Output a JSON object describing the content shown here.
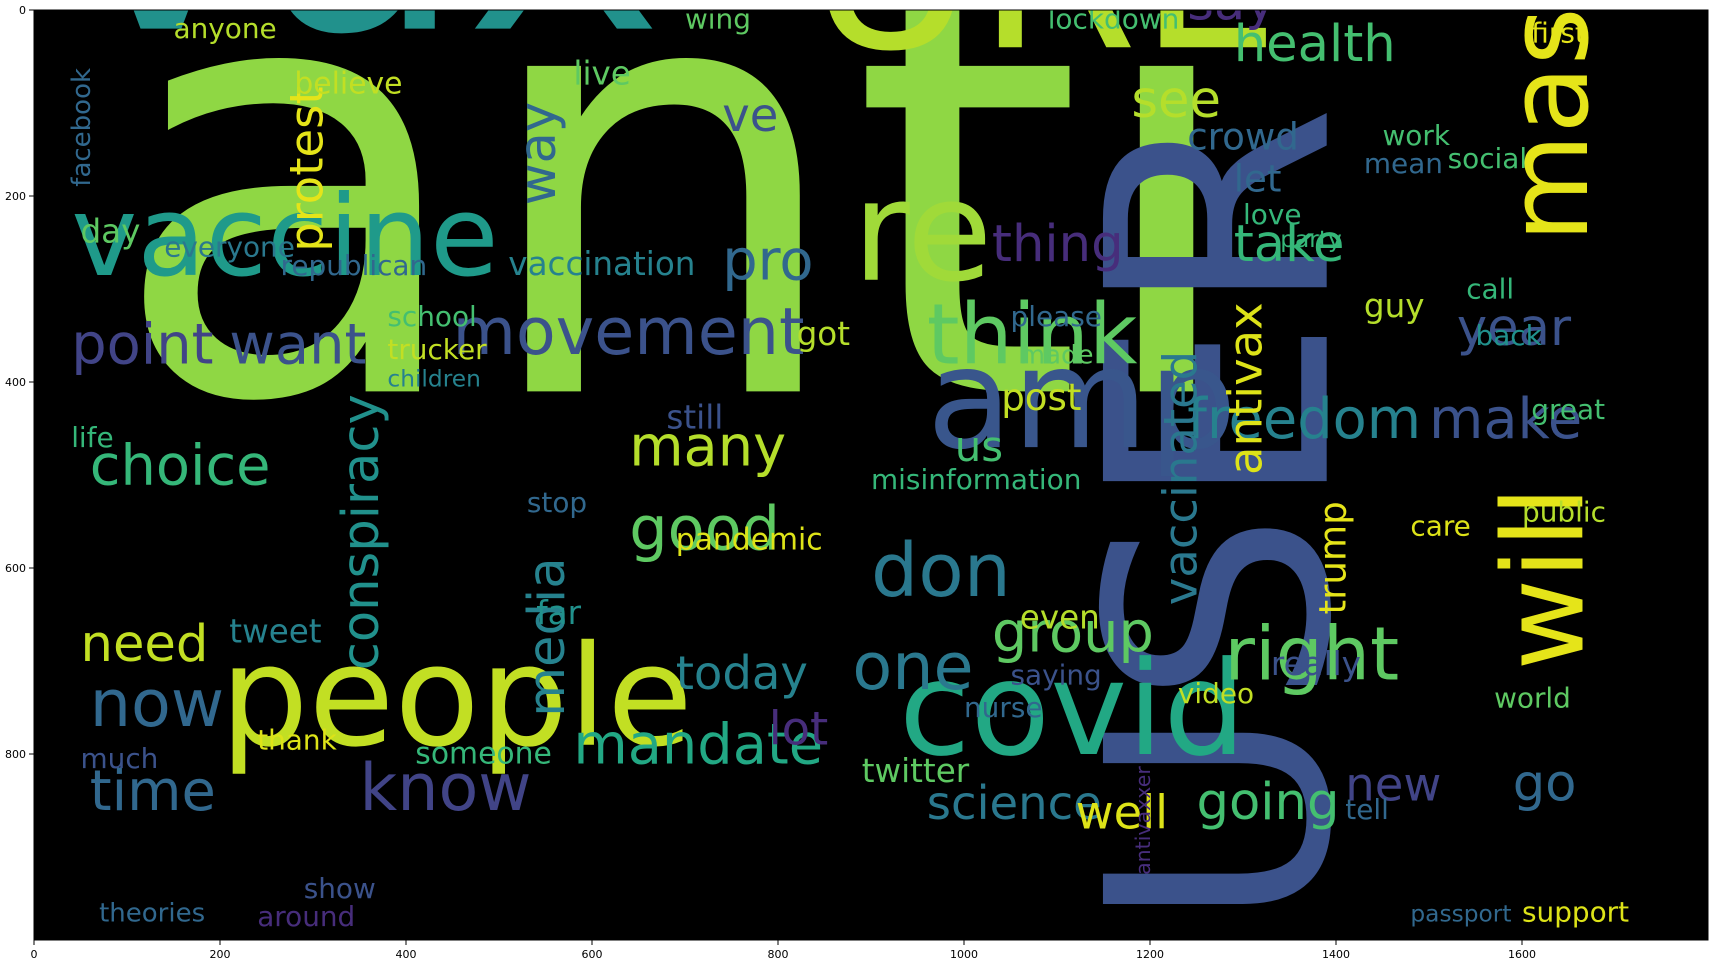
{
  "chart_data": {
    "type": "wordcloud",
    "xlim": [
      0,
      1800
    ],
    "ylim": [
      0,
      1000
    ],
    "y_inverted": true,
    "x_ticks": [
      0,
      200,
      400,
      600,
      800,
      1000,
      1200,
      1400,
      1600
    ],
    "y_ticks": [
      0,
      200,
      400,
      600,
      800
    ],
    "background": "#000000",
    "colormap": "viridis",
    "words": [
      {
        "text": "anti",
        "x": 80,
        "y": 410,
        "size": 640,
        "color": "#8fd744"
      },
      {
        "text": "vax",
        "x": 30,
        "y": 20,
        "size": 360,
        "color": "#21918c"
      },
      {
        "text": "USER",
        "x": 1390,
        "y": 990,
        "size": 330,
        "color": "#3b528b",
        "rotate": true
      },
      {
        "text": "URL",
        "x": 830,
        "y": 40,
        "size": 250,
        "color": "#b5de2b"
      },
      {
        "text": "people",
        "x": 200,
        "y": 790,
        "size": 150,
        "color": "#c2df23"
      },
      {
        "text": "vaccine",
        "x": 40,
        "y": 285,
        "size": 120,
        "color": "#1f9a8a"
      },
      {
        "text": "re",
        "x": 880,
        "y": 290,
        "size": 150,
        "color": "#a0da39"
      },
      {
        "text": "covid",
        "x": 930,
        "y": 800,
        "size": 140,
        "color": "#22a884"
      },
      {
        "text": "amp",
        "x": 960,
        "y": 470,
        "size": 150,
        "color": "#39568c"
      },
      {
        "text": "mask",
        "x": 1670,
        "y": 250,
        "size": 120,
        "color": "#e5e419",
        "rotate": true
      },
      {
        "text": "will",
        "x": 1665,
        "y": 710,
        "size": 120,
        "color": "#e5e419",
        "rotate": true
      },
      {
        "text": "think",
        "x": 960,
        "y": 380,
        "size": 90,
        "color": "#5ec962"
      },
      {
        "text": "don",
        "x": 900,
        "y": 630,
        "size": 80,
        "color": "#2a788e"
      },
      {
        "text": "movement",
        "x": 450,
        "y": 370,
        "size": 70,
        "color": "#3b528b"
      },
      {
        "text": "point",
        "x": 40,
        "y": 380,
        "size": 60,
        "color": "#414487"
      },
      {
        "text": "want",
        "x": 210,
        "y": 380,
        "size": 60,
        "color": "#3b528b"
      },
      {
        "text": "choice",
        "x": 60,
        "y": 510,
        "size": 60,
        "color": "#35b779"
      },
      {
        "text": "good",
        "x": 640,
        "y": 580,
        "size": 65,
        "color": "#5ec962"
      },
      {
        "text": "many",
        "x": 640,
        "y": 490,
        "size": 60,
        "color": "#b5de2b"
      },
      {
        "text": "mandate",
        "x": 580,
        "y": 810,
        "size": 60,
        "color": "#22a884"
      },
      {
        "text": "know",
        "x": 350,
        "y": 860,
        "size": 70,
        "color": "#414487"
      },
      {
        "text": "now",
        "x": 60,
        "y": 770,
        "size": 70,
        "color": "#31688e"
      },
      {
        "text": "time",
        "x": 60,
        "y": 860,
        "size": 60,
        "color": "#31688e"
      },
      {
        "text": "need",
        "x": 50,
        "y": 700,
        "size": 55,
        "color": "#c2df23"
      },
      {
        "text": "right",
        "x": 1280,
        "y": 720,
        "size": 80,
        "color": "#5ec962"
      },
      {
        "text": "freedom",
        "x": 1240,
        "y": 460,
        "size": 60,
        "color": "#26828e"
      },
      {
        "text": "make",
        "x": 1500,
        "y": 460,
        "size": 60,
        "color": "#3b528b"
      },
      {
        "text": "one",
        "x": 880,
        "y": 730,
        "size": 70,
        "color": "#2a788e"
      },
      {
        "text": "group",
        "x": 1030,
        "y": 690,
        "size": 60,
        "color": "#5ec962"
      },
      {
        "text": "science",
        "x": 960,
        "y": 870,
        "size": 50,
        "color": "#2a788e"
      },
      {
        "text": "well",
        "x": 1120,
        "y": 880,
        "size": 50,
        "color": "#dde318"
      },
      {
        "text": "going",
        "x": 1250,
        "y": 870,
        "size": 55,
        "color": "#44bf70"
      },
      {
        "text": "new",
        "x": 1410,
        "y": 850,
        "size": 50,
        "color": "#414487"
      },
      {
        "text": "go",
        "x": 1590,
        "y": 850,
        "size": 55,
        "color": "#31688e"
      },
      {
        "text": "year",
        "x": 1530,
        "y": 360,
        "size": 55,
        "color": "#3b528b"
      },
      {
        "text": "health",
        "x": 1290,
        "y": 55,
        "size": 55,
        "color": "#44bf70"
      },
      {
        "text": "say",
        "x": 1240,
        "y": 10,
        "size": 55,
        "color": "#472d7b"
      },
      {
        "text": "see",
        "x": 1180,
        "y": 115,
        "size": 55,
        "color": "#b5de2b"
      },
      {
        "text": "crowd",
        "x": 1240,
        "y": 150,
        "size": 40,
        "color": "#31688e"
      },
      {
        "text": "take",
        "x": 1290,
        "y": 270,
        "size": 55,
        "color": "#35b779"
      },
      {
        "text": "thing",
        "x": 1030,
        "y": 270,
        "size": 55,
        "color": "#472d7b"
      },
      {
        "text": "pro",
        "x": 740,
        "y": 290,
        "size": 60,
        "color": "#31688e"
      },
      {
        "text": "ve",
        "x": 740,
        "y": 130,
        "size": 50,
        "color": "#3b528b"
      },
      {
        "text": "way",
        "x": 560,
        "y": 210,
        "size": 55,
        "color": "#31688e",
        "rotate": true
      },
      {
        "text": "protest",
        "x": 310,
        "y": 260,
        "size": 50,
        "color": "#e5e419",
        "rotate": true
      },
      {
        "text": "conspiracy",
        "x": 370,
        "y": 710,
        "size": 55,
        "color": "#21918c",
        "rotate": true
      },
      {
        "text": "media",
        "x": 570,
        "y": 760,
        "size": 55,
        "color": "#26828e",
        "rotate": true
      },
      {
        "text": "vaccinated",
        "x": 1250,
        "y": 640,
        "size": 50,
        "color": "#2a788e",
        "rotate": true
      },
      {
        "text": "antivax",
        "x": 1320,
        "y": 500,
        "size": 50,
        "color": "#dde318",
        "rotate": true
      },
      {
        "text": "trump",
        "x": 1410,
        "y": 650,
        "size": 40,
        "color": "#e5e419",
        "rotate": true
      },
      {
        "text": "vaccination",
        "x": 510,
        "y": 285,
        "size": 35,
        "color": "#26828e"
      },
      {
        "text": "republican",
        "x": 265,
        "y": 285,
        "size": 30,
        "color": "#31688e"
      },
      {
        "text": "misinformation",
        "x": 900,
        "y": 515,
        "size": 30,
        "color": "#35b779"
      },
      {
        "text": "today",
        "x": 690,
        "y": 730,
        "size": 50,
        "color": "#26828e"
      },
      {
        "text": "pandemic",
        "x": 690,
        "y": 580,
        "size": 32,
        "color": "#dde318"
      },
      {
        "text": "lot",
        "x": 790,
        "y": 790,
        "size": 50,
        "color": "#472d7b"
      },
      {
        "text": "twitter",
        "x": 890,
        "y": 830,
        "size": 35,
        "color": "#5ec962"
      },
      {
        "text": "someone",
        "x": 410,
        "y": 810,
        "size": 32,
        "color": "#35b779"
      },
      {
        "text": "thank",
        "x": 240,
        "y": 795,
        "size": 30,
        "color": "#dde318"
      },
      {
        "text": "show",
        "x": 290,
        "y": 955,
        "size": 30,
        "color": "#3b528b"
      },
      {
        "text": "around",
        "x": 240,
        "y": 985,
        "size": 30,
        "color": "#472d7b"
      },
      {
        "text": "theories",
        "x": 70,
        "y": 980,
        "size": 28,
        "color": "#31688e"
      },
      {
        "text": "much",
        "x": 50,
        "y": 815,
        "size": 30,
        "color": "#3b528b"
      },
      {
        "text": "tweet",
        "x": 210,
        "y": 680,
        "size": 35,
        "color": "#26828e"
      },
      {
        "text": "life",
        "x": 40,
        "y": 470,
        "size": 30,
        "color": "#35b779"
      },
      {
        "text": "day",
        "x": 50,
        "y": 250,
        "size": 35,
        "color": "#5ec962"
      },
      {
        "text": "everyone",
        "x": 140,
        "y": 265,
        "size": 30,
        "color": "#2a788e"
      },
      {
        "text": "believe",
        "x": 280,
        "y": 90,
        "size": 32,
        "color": "#c2df23"
      },
      {
        "text": "live",
        "x": 580,
        "y": 80,
        "size": 35,
        "color": "#5ec962"
      },
      {
        "text": "anyone",
        "x": 150,
        "y": 30,
        "size": 30,
        "color": "#b5de2b"
      },
      {
        "text": "wing",
        "x": 700,
        "y": 20,
        "size": 30,
        "color": "#5ec962"
      },
      {
        "text": "lockdown",
        "x": 1090,
        "y": 20,
        "size": 30,
        "color": "#44bf70"
      },
      {
        "text": "first",
        "x": 1610,
        "y": 35,
        "size": 30,
        "color": "#e5e419"
      },
      {
        "text": "social",
        "x": 1520,
        "y": 170,
        "size": 30,
        "color": "#44bf70"
      },
      {
        "text": "call",
        "x": 1540,
        "y": 310,
        "size": 30,
        "color": "#35b779"
      },
      {
        "text": "back",
        "x": 1550,
        "y": 360,
        "size": 30,
        "color": "#21918c"
      },
      {
        "text": "great",
        "x": 1610,
        "y": 440,
        "size": 30,
        "color": "#44bf70"
      },
      {
        "text": "public",
        "x": 1600,
        "y": 550,
        "size": 30,
        "color": "#b5de2b"
      },
      {
        "text": "world",
        "x": 1570,
        "y": 750,
        "size": 30,
        "color": "#5ec962"
      },
      {
        "text": "support",
        "x": 1600,
        "y": 980,
        "size": 30,
        "color": "#dde318"
      },
      {
        "text": "passport",
        "x": 1480,
        "y": 980,
        "size": 25,
        "color": "#31688e"
      },
      {
        "text": "post",
        "x": 1040,
        "y": 430,
        "size": 40,
        "color": "#c2df23"
      },
      {
        "text": "us",
        "x": 990,
        "y": 485,
        "size": 45,
        "color": "#44bf70"
      },
      {
        "text": "even",
        "x": 1060,
        "y": 665,
        "size": 35,
        "color": "#b5de2b"
      },
      {
        "text": "really",
        "x": 1330,
        "y": 715,
        "size": 35,
        "color": "#3b528b"
      },
      {
        "text": "saying",
        "x": 1050,
        "y": 725,
        "size": 30,
        "color": "#3b528b"
      },
      {
        "text": "please",
        "x": 1050,
        "y": 340,
        "size": 30,
        "color": "#31688e"
      },
      {
        "text": "made",
        "x": 1060,
        "y": 380,
        "size": 28,
        "color": "#5ec962"
      },
      {
        "text": "school",
        "x": 380,
        "y": 340,
        "size": 30,
        "color": "#44bf70"
      },
      {
        "text": "trucker",
        "x": 380,
        "y": 375,
        "size": 30,
        "color": "#c2df23"
      },
      {
        "text": "children",
        "x": 380,
        "y": 405,
        "size": 25,
        "color": "#26828e"
      },
      {
        "text": "got",
        "x": 820,
        "y": 360,
        "size": 35,
        "color": "#b5de2b"
      },
      {
        "text": "still",
        "x": 680,
        "y": 450,
        "size": 35,
        "color": "#3b528b"
      },
      {
        "text": "stop",
        "x": 530,
        "y": 540,
        "size": 30,
        "color": "#31688e"
      },
      {
        "text": "far",
        "x": 540,
        "y": 660,
        "size": 35,
        "color": "#21918c"
      },
      {
        "text": "video",
        "x": 1230,
        "y": 745,
        "size": 30,
        "color": "#c2df23"
      },
      {
        "text": "nurse",
        "x": 1000,
        "y": 760,
        "size": 30,
        "color": "#31688e"
      },
      {
        "text": "party",
        "x": 1340,
        "y": 255,
        "size": 25,
        "color": "#35b779"
      },
      {
        "text": "love",
        "x": 1300,
        "y": 230,
        "size": 30,
        "color": "#35b779"
      },
      {
        "text": "let",
        "x": 1290,
        "y": 195,
        "size": 40,
        "color": "#31688e"
      },
      {
        "text": "guy",
        "x": 1430,
        "y": 330,
        "size": 35,
        "color": "#b5de2b"
      },
      {
        "text": "care",
        "x": 1480,
        "y": 565,
        "size": 30,
        "color": "#dde318"
      },
      {
        "text": "work",
        "x": 1450,
        "y": 145,
        "size": 30,
        "color": "#44bf70"
      },
      {
        "text": "mean",
        "x": 1430,
        "y": 175,
        "size": 30,
        "color": "#31688e"
      },
      {
        "text": "tell",
        "x": 1410,
        "y": 870,
        "size": 30,
        "color": "#31688e"
      },
      {
        "text": "facebook",
        "x": 60,
        "y": 190,
        "size": 28,
        "color": "#31688e",
        "rotate": true
      },
      {
        "text": "antivaxxer",
        "x": 1200,
        "y": 930,
        "size": 22,
        "color": "#472d7b",
        "rotate": true
      }
    ]
  }
}
